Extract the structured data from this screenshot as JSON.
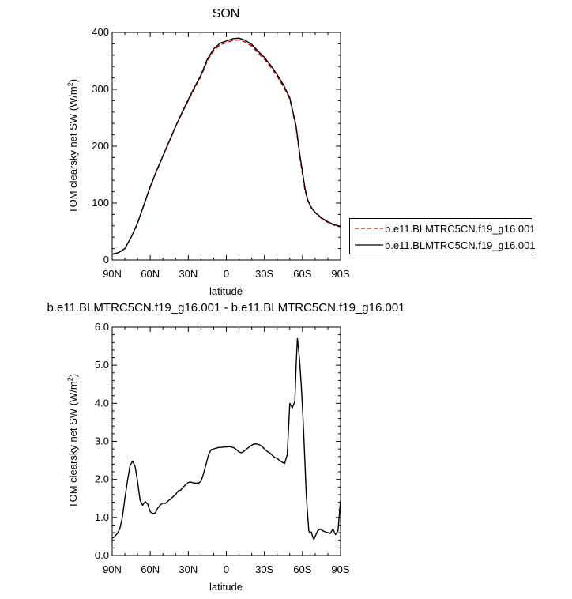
{
  "chart_data": [
    {
      "type": "line",
      "title": "SON",
      "xlabel": "latitude",
      "ylabel": "TOM clearsky net SW (W/m",
      "ylabel_sup": "2",
      "ylabel_tail": ")",
      "xlim": [
        90,
        -90
      ],
      "ylim": [
        0,
        400
      ],
      "x_tick_values": [
        90,
        60,
        30,
        0,
        -30,
        -60,
        -90
      ],
      "x_tick_labels": [
        "90N",
        "60N",
        "30N",
        "0",
        "30S",
        "60S",
        "90S"
      ],
      "y_tick_values": [
        0,
        100,
        200,
        300,
        400
      ],
      "y_tick_labels": [
        "0",
        "100",
        "200",
        "300",
        "400"
      ],
      "grid": false,
      "legend": "right",
      "series": [
        {
          "name": "b.e11.BLMTRC5CN.f19_g16.001",
          "color": "#cc0000",
          "dash": "dashed",
          "x": [
            90,
            85,
            80,
            75,
            70,
            65,
            60,
            55,
            50,
            45,
            40,
            35,
            30,
            25,
            20,
            15,
            10,
            5,
            0,
            -5,
            -10,
            -15,
            -20,
            -25,
            -30,
            -35,
            -40,
            -45,
            -50,
            -55,
            -58,
            -60,
            -62,
            -64,
            -66,
            -68,
            -70,
            -75,
            -80,
            -85,
            -90
          ],
          "y": [
            10,
            13,
            20,
            40,
            64,
            96,
            128,
            156,
            182,
            208,
            234,
            258,
            280,
            302,
            323,
            350,
            368,
            378,
            382,
            386,
            387,
            383,
            376,
            364,
            353,
            339,
            323,
            305,
            283,
            232,
            180,
            150,
            122,
            105,
            95,
            88,
            83,
            73,
            66,
            61,
            58
          ]
        },
        {
          "name": "b.e11.BLMTRC5CN.f19_g16.001",
          "color": "#000000",
          "dash": "solid",
          "x": [
            90,
            85,
            80,
            75,
            70,
            65,
            60,
            55,
            50,
            45,
            40,
            35,
            30,
            25,
            20,
            15,
            10,
            5,
            0,
            -5,
            -10,
            -15,
            -20,
            -25,
            -30,
            -35,
            -40,
            -45,
            -50,
            -55,
            -58,
            -60,
            -62,
            -64,
            -66,
            -68,
            -70,
            -75,
            -80,
            -85,
            -90
          ],
          "y": [
            10,
            13,
            20,
            40,
            65,
            97,
            129,
            157,
            183,
            209,
            235,
            259,
            282,
            304,
            325,
            353,
            371,
            381,
            385,
            389,
            390,
            386,
            379,
            367,
            356,
            342,
            326,
            308,
            285,
            235,
            184,
            155,
            126,
            107,
            96,
            89,
            84,
            74,
            67,
            62,
            59
          ]
        }
      ]
    },
    {
      "type": "line",
      "title": "b.e11.BLMTRC5CN.f19_g16.001 - b.e11.BLMTRC5CN.f19_g16.001",
      "xlabel": "latitude",
      "ylabel": "TOM clearsky net SW (W/m",
      "ylabel_sup": "2",
      "ylabel_tail": ")",
      "xlim": [
        90,
        -90
      ],
      "ylim": [
        0,
        6
      ],
      "x_tick_values": [
        90,
        60,
        30,
        0,
        -30,
        -60,
        -90
      ],
      "x_tick_labels": [
        "90N",
        "60N",
        "30N",
        "0",
        "30S",
        "60S",
        "90S"
      ],
      "y_tick_values": [
        0,
        1,
        2,
        3,
        4,
        5,
        6
      ],
      "y_tick_labels": [
        "0.0",
        "1.0",
        "2.0",
        "3.0",
        "4.0",
        "5.0",
        "6.0"
      ],
      "grid": false,
      "series": [
        {
          "color": "#000000",
          "dash": "solid",
          "x": [
            90,
            88,
            86,
            84,
            82,
            80,
            78,
            76,
            74,
            72,
            70,
            68,
            66,
            64,
            62,
            60,
            58,
            56,
            54,
            52,
            50,
            48,
            46,
            44,
            42,
            40,
            38,
            36,
            34,
            32,
            30,
            28,
            26,
            24,
            22,
            20,
            18,
            16,
            14,
            12,
            10,
            8,
            6,
            4,
            2,
            0,
            -2,
            -4,
            -6,
            -8,
            -10,
            -12,
            -14,
            -16,
            -18,
            -20,
            -22,
            -24,
            -26,
            -28,
            -30,
            -32,
            -34,
            -36,
            -38,
            -40,
            -42,
            -44,
            -46,
            -48,
            -50,
            -52,
            -54,
            -55,
            -56,
            -57,
            -58,
            -59,
            -60,
            -61,
            -62,
            -63,
            -64,
            -65,
            -66,
            -67,
            -68,
            -69,
            -70,
            -72,
            -74,
            -76,
            -78,
            -80,
            -82,
            -84,
            -86,
            -88,
            -90
          ],
          "y": [
            0.45,
            0.5,
            0.58,
            0.7,
            1.0,
            1.5,
            1.95,
            2.35,
            2.48,
            2.35,
            1.95,
            1.45,
            1.32,
            1.42,
            1.35,
            1.15,
            1.1,
            1.12,
            1.25,
            1.33,
            1.38,
            1.37,
            1.43,
            1.48,
            1.55,
            1.6,
            1.7,
            1.72,
            1.8,
            1.86,
            1.92,
            1.93,
            1.91,
            1.9,
            1.9,
            1.95,
            2.15,
            2.4,
            2.65,
            2.78,
            2.8,
            2.82,
            2.84,
            2.84,
            2.85,
            2.85,
            2.86,
            2.85,
            2.83,
            2.78,
            2.72,
            2.7,
            2.74,
            2.8,
            2.85,
            2.9,
            2.93,
            2.93,
            2.91,
            2.87,
            2.8,
            2.74,
            2.7,
            2.64,
            2.58,
            2.55,
            2.5,
            2.45,
            2.42,
            2.65,
            4.0,
            3.88,
            4.05,
            5.0,
            5.7,
            5.4,
            5.0,
            4.5,
            3.9,
            3.2,
            2.4,
            1.6,
            1.1,
            0.65,
            0.58,
            0.62,
            0.5,
            0.42,
            0.5,
            0.65,
            0.7,
            0.65,
            0.62,
            0.6,
            0.58,
            0.7,
            0.55,
            0.65,
            1.45
          ]
        }
      ]
    }
  ]
}
